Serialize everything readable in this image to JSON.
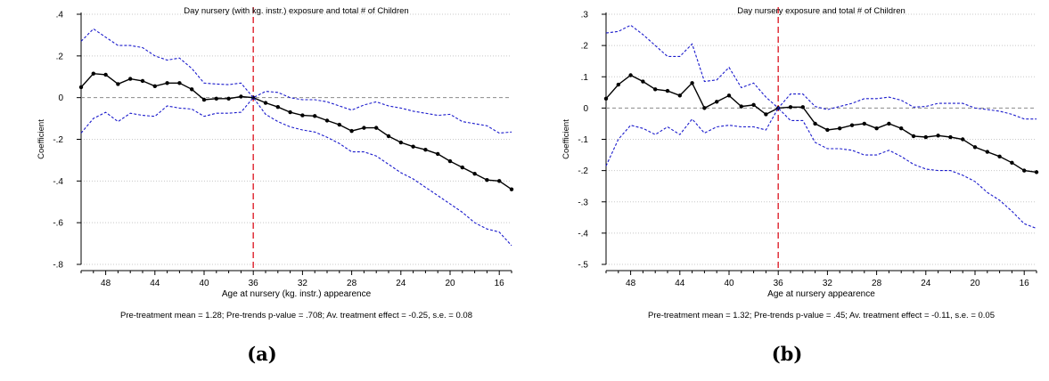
{
  "chart_data": [
    {
      "type": "line",
      "title": "Day nursery (with kg. instr.) exposure and total # of Children",
      "xlabel": "Age at nursery (kg. instr.) appearence",
      "ylabel": "Coefficient",
      "note": "Pre-treatment mean = 1.28; Pre-trends p-value = .708; Av. treatment effect = -0.25, s.e. = 0.08",
      "caption": "(a)",
      "xlim": [
        50,
        15
      ],
      "ylim": [
        -0.8,
        0.4
      ],
      "xticks": [
        48,
        44,
        40,
        36,
        32,
        28,
        24,
        20,
        16
      ],
      "yticks": [
        0.4,
        0.2,
        0,
        -0.2,
        -0.4,
        -0.6,
        -0.8
      ],
      "ytick_labels": [
        ".4",
        ".2",
        "0",
        "-.2",
        "-.4",
        "-.6",
        "-.8"
      ],
      "vline": 36,
      "hline": 0,
      "grid": true,
      "colors": {
        "coef": "#000000",
        "ci": "#1a1acc",
        "vline": "#e0303a",
        "grid": "#c8c8c8"
      },
      "x": [
        50,
        49,
        48,
        47,
        46,
        45,
        44,
        43,
        42,
        41,
        40,
        39,
        38,
        37,
        36,
        35,
        34,
        33,
        32,
        31,
        30,
        29,
        28,
        27,
        26,
        25,
        24,
        23,
        22,
        21,
        20,
        19,
        18,
        17,
        16,
        15
      ],
      "series": [
        {
          "role": "coef",
          "values": [
            0.05,
            0.115,
            0.11,
            0.065,
            0.09,
            0.08,
            0.055,
            0.07,
            0.07,
            0.04,
            -0.01,
            -0.005,
            -0.005,
            0.005,
            0.0,
            -0.025,
            -0.045,
            -0.07,
            -0.085,
            -0.088,
            -0.11,
            -0.13,
            -0.16,
            -0.145,
            -0.145,
            -0.185,
            -0.215,
            -0.235,
            -0.25,
            -0.27,
            -0.305,
            -0.335,
            -0.365,
            -0.395,
            -0.4,
            -0.44
          ]
        },
        {
          "role": "ci-upper",
          "values": [
            0.27,
            0.33,
            0.29,
            0.25,
            0.25,
            0.24,
            0.2,
            0.18,
            0.19,
            0.14,
            0.07,
            0.065,
            0.062,
            0.07,
            0.0,
            0.03,
            0.025,
            0.0,
            -0.01,
            -0.01,
            -0.02,
            -0.04,
            -0.06,
            -0.035,
            -0.02,
            -0.04,
            -0.05,
            -0.065,
            -0.075,
            -0.085,
            -0.08,
            -0.115,
            -0.125,
            -0.135,
            -0.17,
            -0.165
          ]
        },
        {
          "role": "ci-lower",
          "values": [
            -0.17,
            -0.1,
            -0.07,
            -0.115,
            -0.075,
            -0.085,
            -0.09,
            -0.04,
            -0.05,
            -0.055,
            -0.09,
            -0.075,
            -0.075,
            -0.07,
            0.0,
            -0.08,
            -0.115,
            -0.14,
            -0.155,
            -0.165,
            -0.19,
            -0.22,
            -0.26,
            -0.26,
            -0.28,
            -0.32,
            -0.36,
            -0.39,
            -0.43,
            -0.47,
            -0.51,
            -0.55,
            -0.6,
            -0.63,
            -0.645,
            -0.71
          ]
        }
      ]
    },
    {
      "type": "line",
      "title": "Day nursery exposure and total # of Children",
      "xlabel": "Age at nursery appearence",
      "ylabel": "Coefficient",
      "note": "Pre-treatment mean = 1.32; Pre-trends p-value = .45; Av. treatment effect = -0.11, s.e. = 0.05",
      "caption": "(b)",
      "xlim": [
        50,
        15
      ],
      "ylim": [
        -0.5,
        0.3
      ],
      "xticks": [
        48,
        44,
        40,
        36,
        32,
        28,
        24,
        20,
        16
      ],
      "yticks": [
        0.3,
        0.2,
        0.1,
        0,
        -0.1,
        -0.2,
        -0.3,
        -0.4,
        -0.5
      ],
      "ytick_labels": [
        ".3",
        ".2",
        ".1",
        "0",
        "-.1",
        "-.2",
        "-.3",
        "-.4",
        "-.5"
      ],
      "vline": 36,
      "hline": 0,
      "grid": true,
      "colors": {
        "coef": "#000000",
        "ci": "#1a1acc",
        "vline": "#e0303a",
        "grid": "#c8c8c8"
      },
      "x": [
        50,
        49,
        48,
        47,
        46,
        45,
        44,
        43,
        42,
        41,
        40,
        39,
        38,
        37,
        36,
        35,
        34,
        33,
        32,
        31,
        30,
        29,
        28,
        27,
        26,
        25,
        24,
        23,
        22,
        21,
        20,
        19,
        18,
        17,
        16,
        15
      ],
      "series": [
        {
          "role": "coef",
          "values": [
            0.03,
            0.075,
            0.105,
            0.085,
            0.06,
            0.055,
            0.04,
            0.08,
            0.0,
            0.02,
            0.04,
            0.005,
            0.01,
            -0.02,
            0.0,
            0.003,
            0.003,
            -0.05,
            -0.07,
            -0.065,
            -0.055,
            -0.05,
            -0.065,
            -0.05,
            -0.065,
            -0.09,
            -0.093,
            -0.088,
            -0.093,
            -0.1,
            -0.125,
            -0.14,
            -0.155,
            -0.175,
            -0.2,
            -0.205
          ]
        },
        {
          "role": "ci-upper",
          "values": [
            0.24,
            0.245,
            0.265,
            0.235,
            0.2,
            0.165,
            0.165,
            0.205,
            0.085,
            0.09,
            0.13,
            0.065,
            0.08,
            0.035,
            0.0,
            0.045,
            0.045,
            0.005,
            -0.005,
            0.005,
            0.015,
            0.03,
            0.03,
            0.035,
            0.025,
            0.003,
            0.005,
            0.015,
            0.015,
            0.015,
            0.0,
            -0.005,
            -0.01,
            -0.02,
            -0.035,
            -0.035
          ]
        },
        {
          "role": "ci-lower",
          "values": [
            -0.185,
            -0.1,
            -0.055,
            -0.065,
            -0.085,
            -0.06,
            -0.085,
            -0.035,
            -0.08,
            -0.06,
            -0.055,
            -0.06,
            -0.06,
            -0.07,
            0.0,
            -0.04,
            -0.04,
            -0.11,
            -0.13,
            -0.13,
            -0.135,
            -0.15,
            -0.15,
            -0.135,
            -0.155,
            -0.18,
            -0.195,
            -0.2,
            -0.2,
            -0.215,
            -0.235,
            -0.27,
            -0.295,
            -0.33,
            -0.37,
            -0.385
          ]
        }
      ]
    }
  ]
}
